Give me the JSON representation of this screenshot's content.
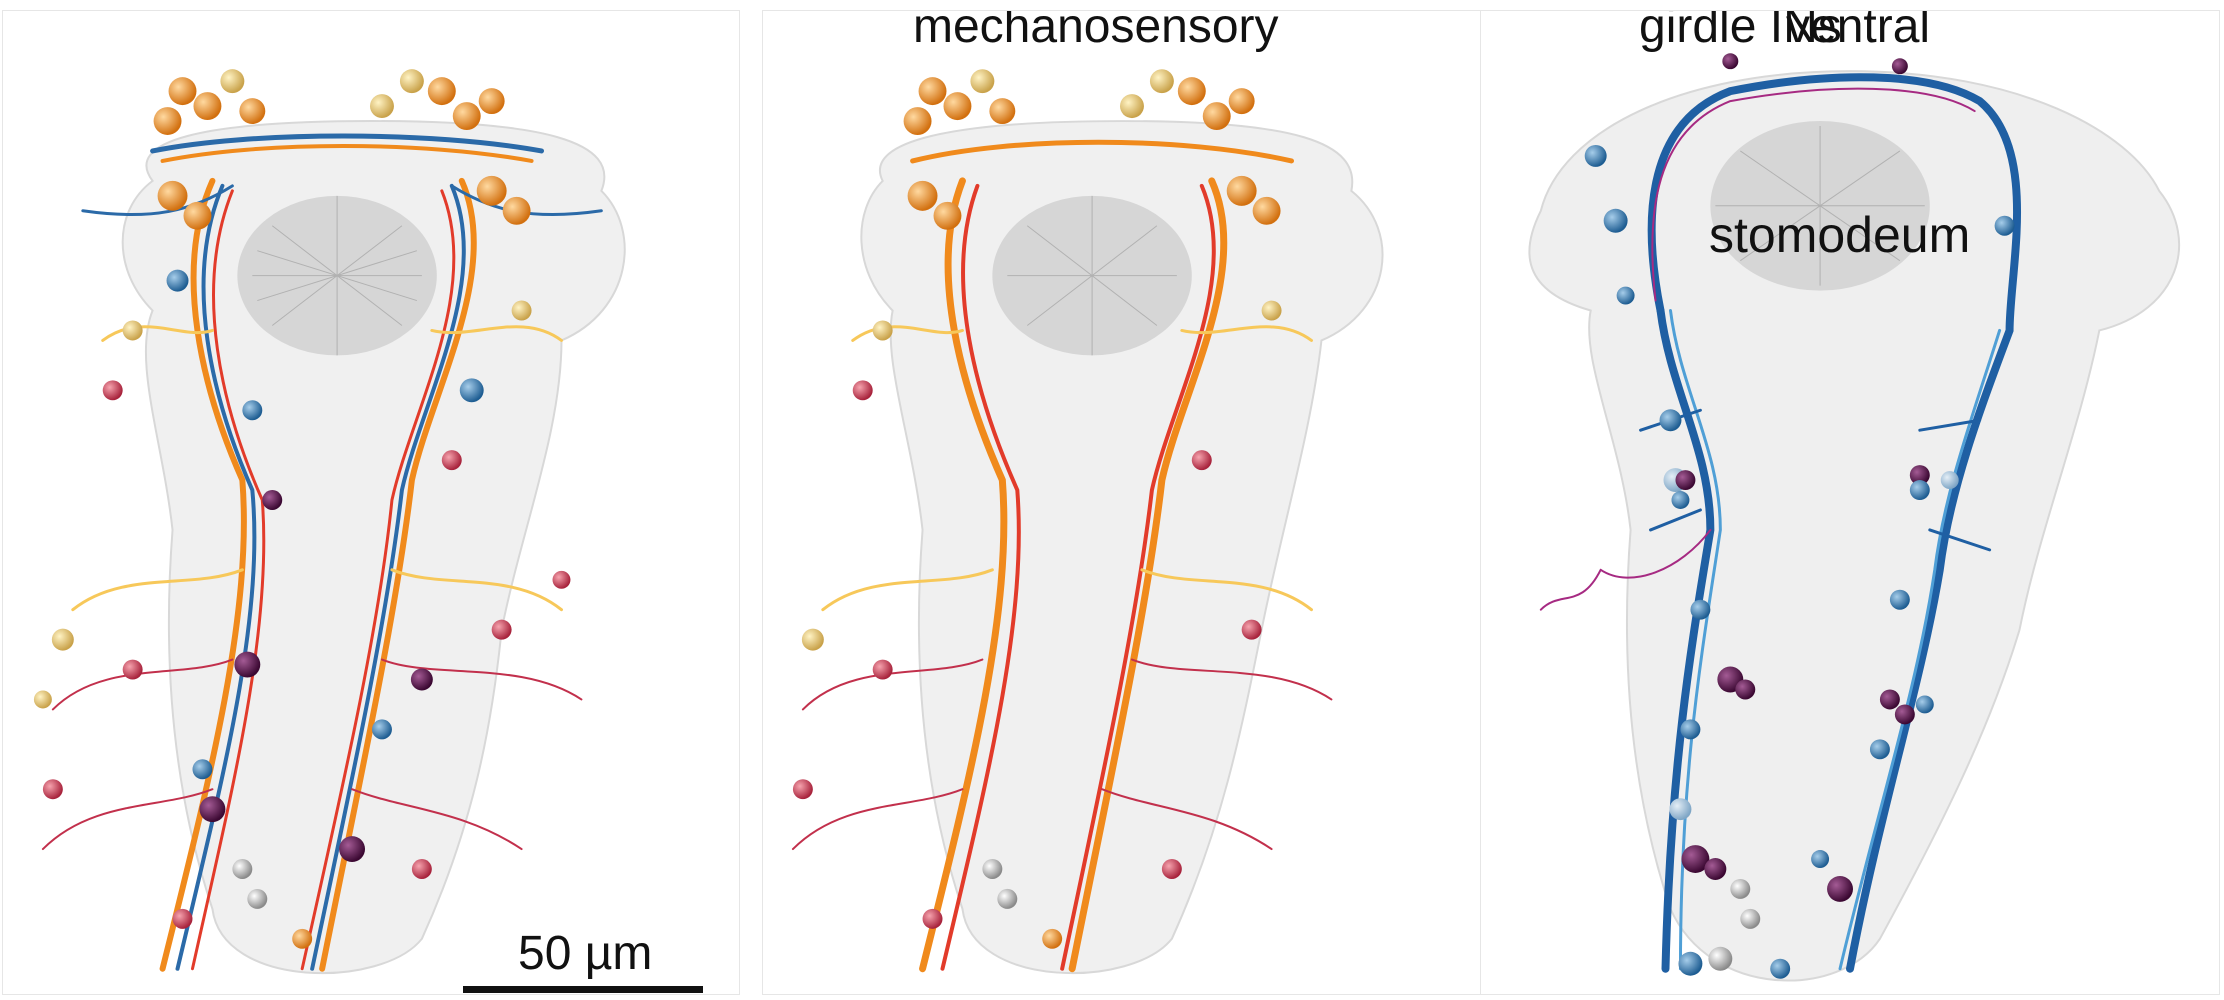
{
  "panels": [
    {
      "id": "all",
      "title": "",
      "colors": [
        "#f08a1c",
        "#e23b2a",
        "#f7c85a",
        "#2b6aa8",
        "#5f9fd3",
        "#1a1a1a",
        "#c2304c",
        "#4b0a3d"
      ]
    },
    {
      "id": "mechanosensory",
      "title": "mechanosensory",
      "colors": [
        "#f08a1c",
        "#e23b2a",
        "#f7c85a",
        "#c2304c"
      ]
    },
    {
      "id": "girdle",
      "title": "girdle INs",
      "title_overlap": "ventral",
      "inner_label": "stomodeum",
      "colors": [
        "#1f5fa3",
        "#4f9fd6",
        "#a62a82",
        "#4b0a3d",
        "#7fa6c6"
      ]
    }
  ],
  "scale_bar": {
    "label": "50 µm"
  }
}
